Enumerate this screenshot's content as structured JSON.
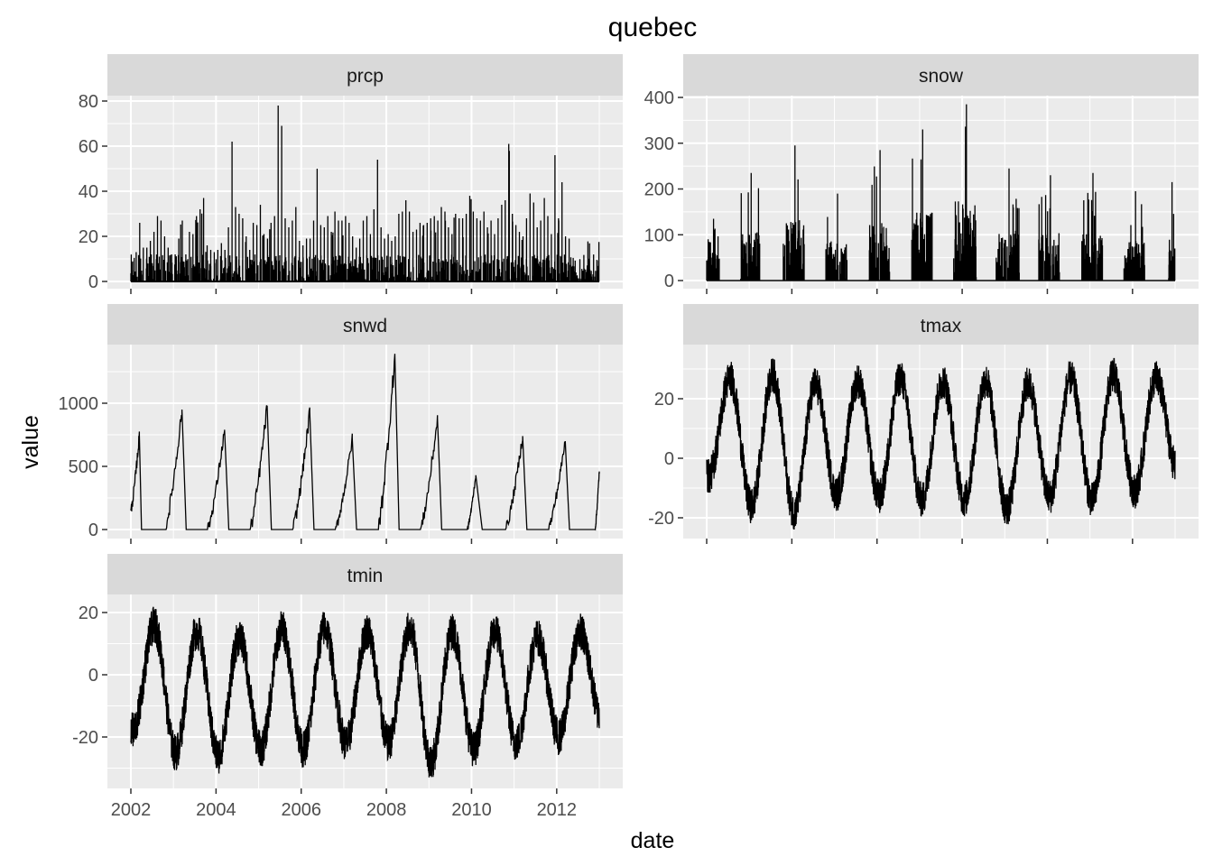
{
  "chart_data": {
    "type": "line",
    "title": "quebec",
    "xlabel": "date",
    "ylabel": "value",
    "x_ticks": [
      "2002",
      "2004",
      "2006",
      "2008",
      "2010",
      "2012"
    ],
    "xlim": [
      "2002-01-01",
      "2013-01-01"
    ],
    "grid": true,
    "panels": [
      {
        "name": "prcp",
        "ylim": [
          0,
          80
        ],
        "y_ticks": [
          "0",
          "20",
          "40",
          "60",
          "80"
        ],
        "approx_monthly_peak": [
          5,
          13,
          26,
          15,
          15,
          18,
          22,
          29,
          27,
          20,
          15,
          12,
          12,
          19,
          27,
          12,
          22,
          21,
          29,
          32,
          37,
          16,
          14,
          13,
          14,
          17,
          14,
          24,
          62,
          33,
          30,
          28,
          20,
          14,
          26,
          25,
          34,
          21,
          19,
          26,
          29,
          78,
          69,
          28,
          24,
          27,
          33,
          18,
          16,
          19,
          19,
          27,
          50,
          25,
          24,
          29,
          22,
          31,
          27,
          27,
          29,
          26,
          20,
          15,
          19,
          27,
          29,
          21,
          32,
          54,
          24,
          19,
          21,
          18,
          20,
          30,
          31,
          36,
          31,
          22,
          23,
          26,
          25,
          26,
          28,
          29,
          27,
          33,
          31,
          24,
          21,
          30,
          28,
          28,
          30,
          38,
          31,
          28,
          27,
          31,
          24,
          27,
          21,
          28,
          34,
          36,
          61,
          30,
          25,
          22,
          20,
          28,
          39,
          35,
          24,
          27,
          37,
          29,
          21,
          56,
          28,
          44,
          20,
          19
        ]
      },
      {
        "name": "snow",
        "ylim": [
          0,
          400
        ],
        "y_ticks": [
          "0",
          "100",
          "200",
          "300",
          "400"
        ],
        "winters": [
          {
            "start": 2002.0,
            "end": 2002.3,
            "peak": 135
          },
          {
            "start": 2002.8,
            "end": 2003.25,
            "peak": 235
          },
          {
            "start": 2003.8,
            "end": 2004.3,
            "peak": 295
          },
          {
            "start": 2004.8,
            "end": 2005.3,
            "peak": 190
          },
          {
            "start": 2005.8,
            "end": 2006.3,
            "peak": 285
          },
          {
            "start": 2006.8,
            "end": 2007.3,
            "peak": 330
          },
          {
            "start": 2007.8,
            "end": 2008.35,
            "peak": 385
          },
          {
            "start": 2008.8,
            "end": 2009.35,
            "peak": 245
          },
          {
            "start": 2009.8,
            "end": 2010.3,
            "peak": 230
          },
          {
            "start": 2010.8,
            "end": 2011.3,
            "peak": 235
          },
          {
            "start": 2011.8,
            "end": 2012.3,
            "peak": 195
          },
          {
            "start": 2012.85,
            "end": 2013.0,
            "peak": 215
          }
        ]
      },
      {
        "name": "snwd",
        "ylim": [
          0,
          1400
        ],
        "y_ticks": [
          "0",
          "500",
          "1000"
        ],
        "winters": [
          {
            "start": 2002.0,
            "end": 2002.25,
            "peak": 750,
            "peak_at": 2002.2
          },
          {
            "start": 2002.8,
            "end": 2003.3,
            "peak": 950,
            "peak_at": 2003.2
          },
          {
            "start": 2003.8,
            "end": 2004.3,
            "peak": 790,
            "peak_at": 2004.2
          },
          {
            "start": 2004.8,
            "end": 2005.3,
            "peak": 980,
            "peak_at": 2005.2
          },
          {
            "start": 2005.8,
            "end": 2006.3,
            "peak": 930,
            "peak_at": 2006.2
          },
          {
            "start": 2006.8,
            "end": 2007.3,
            "peak": 720,
            "peak_at": 2007.2
          },
          {
            "start": 2007.8,
            "end": 2008.3,
            "peak": 1380,
            "peak_at": 2008.2
          },
          {
            "start": 2008.8,
            "end": 2009.3,
            "peak": 880,
            "peak_at": 2009.2
          },
          {
            "start": 2009.9,
            "end": 2010.25,
            "peak": 430,
            "peak_at": 2010.1
          },
          {
            "start": 2010.8,
            "end": 2011.3,
            "peak": 740,
            "peak_at": 2011.2
          },
          {
            "start": 2011.8,
            "end": 2012.3,
            "peak": 700,
            "peak_at": 2012.2
          },
          {
            "start": 2012.9,
            "end": 2013.0,
            "peak": 460,
            "peak_at": 2013.0
          }
        ]
      },
      {
        "name": "tmax",
        "ylim": [
          -25,
          35
        ],
        "y_ticks": [
          "-20",
          "0",
          "20"
        ],
        "seasonal_mean": 10,
        "seasonal_amplitude": 16,
        "annual_peaks": [
          33,
          34,
          31,
          32,
          33,
          32,
          32,
          31,
          33,
          34,
          33
        ],
        "annual_troughs": [
          -12,
          -22,
          -24,
          -18,
          -19,
          -20,
          -20,
          -23,
          -19,
          -20,
          -17,
          -10
        ]
      },
      {
        "name": "tmin",
        "ylim": [
          -35,
          22
        ],
        "y_ticks": [
          "-20",
          "0",
          "20"
        ],
        "seasonal_mean": -2,
        "seasonal_amplitude": 16,
        "annual_peaks": [
          22,
          20,
          18,
          21,
          21,
          20,
          21,
          20,
          20,
          18,
          20
        ],
        "annual_troughs": [
          -24,
          -31,
          -32,
          -30,
          -30,
          -28,
          -28,
          -34,
          -30,
          -28,
          -26,
          -20
        ]
      }
    ]
  }
}
